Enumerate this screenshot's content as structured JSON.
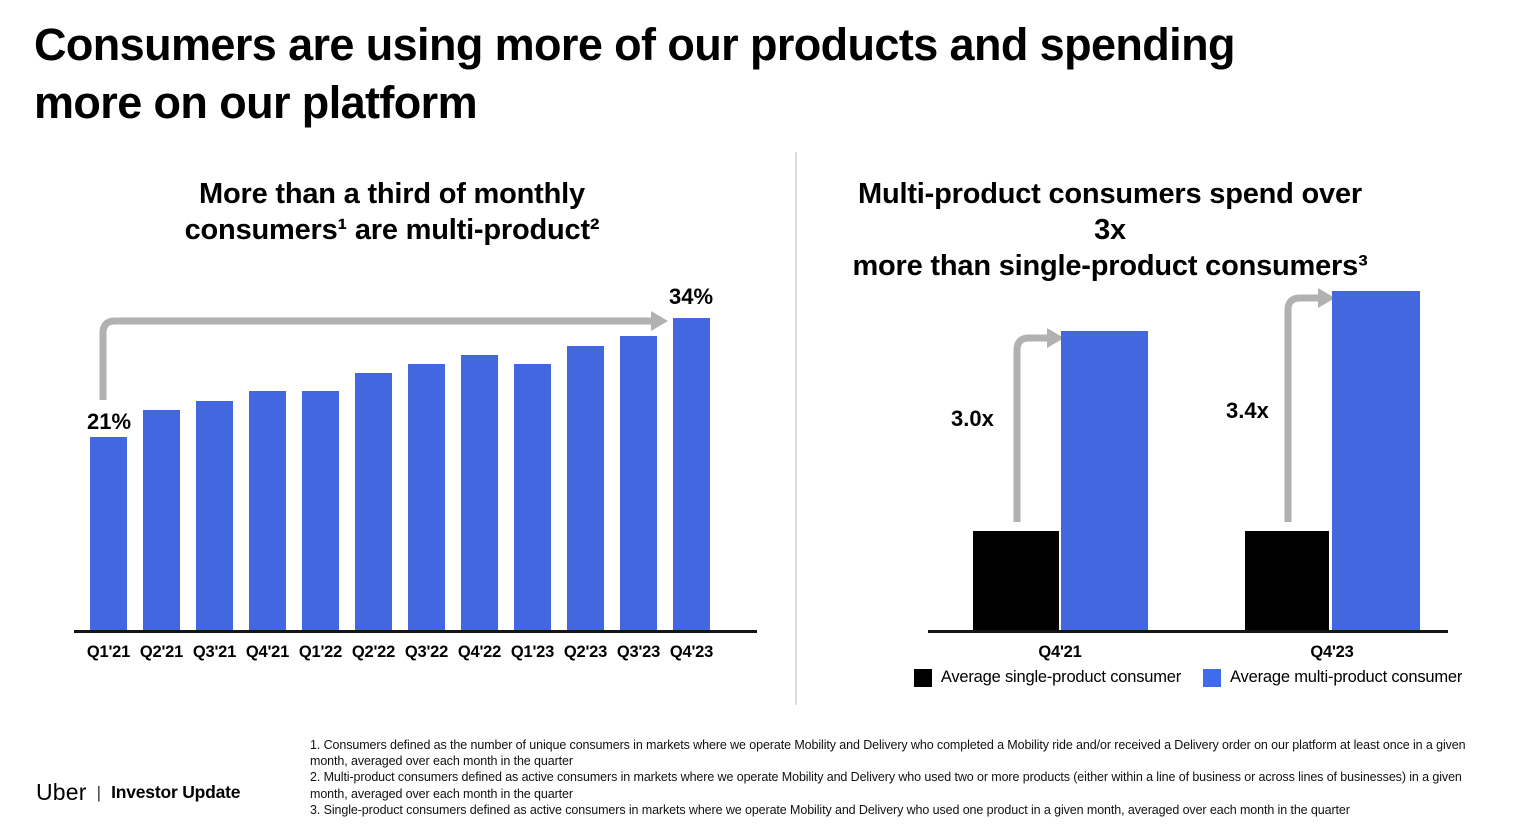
{
  "slide": {
    "title": "Consumers are using more of our products and spending more on our platform",
    "title_lines": [
      "Consumers are using more of our products and spending",
      "more on our platform"
    ]
  },
  "chart_data": [
    {
      "type": "bar",
      "title": "More than a third of monthly consumers¹ are multi-product²",
      "title_lines": [
        "More than a third of monthly",
        "consumers¹ are multi-product²"
      ],
      "categories": [
        "Q1'21",
        "Q2'21",
        "Q3'21",
        "Q4'21",
        "Q1'22",
        "Q2'22",
        "Q3'22",
        "Q4'22",
        "Q1'23",
        "Q2'23",
        "Q3'23",
        "Q4'23"
      ],
      "values": [
        21,
        24,
        25,
        26,
        26,
        28,
        29,
        30,
        29,
        31,
        32,
        34
      ],
      "unit": "%",
      "ylim": [
        0,
        34
      ],
      "grid": false,
      "annotations": [
        {
          "category": "Q1'21",
          "label": "21%"
        },
        {
          "category": "Q4'23",
          "label": "34%"
        }
      ]
    },
    {
      "type": "bar",
      "title": "Multi-product consumers spend over 3x more than single-product consumers³",
      "title_lines": [
        "Multi-product consumers spend over 3x",
        "more than single-product consumers³"
      ],
      "categories": [
        "Q4'21",
        "Q4'23"
      ],
      "series": [
        {
          "name": "Average single-product consumer",
          "values": [
            1.0,
            1.0
          ],
          "color": "#000000"
        },
        {
          "name": "Average multi-product consumer",
          "values": [
            3.0,
            3.4
          ],
          "color": "#4267DE"
        }
      ],
      "annotations": [
        "3.0x",
        "3.4x"
      ],
      "legend_position": "bottom",
      "grid": false
    }
  ],
  "footnotes": [
    "1. Consumers defined as the number of unique consumers in markets where we operate Mobility and Delivery who completed a Mobility ride and/or received a Delivery order on our platform at least once in a given month, averaged over each month in the quarter",
    "2. Multi-product consumers defined as active consumers in markets where we operate Mobility and Delivery who used two or more products (either within a line of business or across lines of businesses) in a given month, averaged over each month in the quarter",
    "3. Single-product consumers defined as active consumers in markets where we operate Mobility and Delivery who used one product in a given month, averaged over each month in the quarter"
  ],
  "footer": {
    "brand": "Uber",
    "separator": "|",
    "label": "Investor Update"
  },
  "colors": {
    "bar_blue": "#4267DE",
    "bar_black": "#000000",
    "legend_blue": "#3E6CEA",
    "arrow_gray": "#B1B1B1",
    "axis_black": "#151515",
    "divider_gray": "#DCDCDC",
    "text_black": "#000000"
  }
}
